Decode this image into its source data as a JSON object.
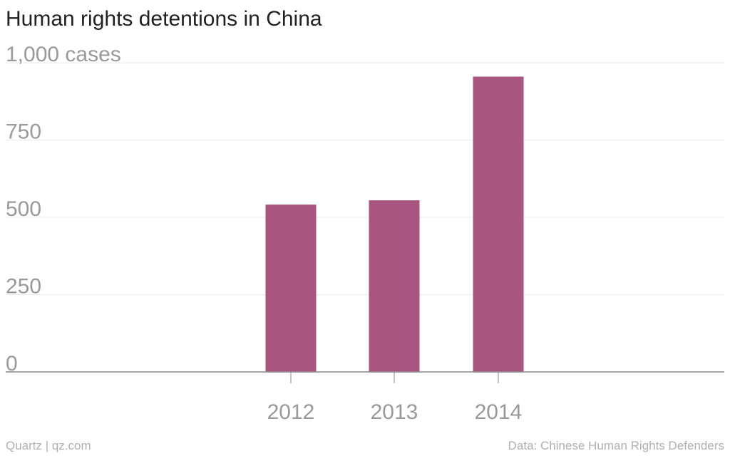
{
  "chart_data": {
    "type": "bar",
    "title": "Human rights detentions in China",
    "categories": [
      "2012",
      "2013",
      "2014"
    ],
    "series": [
      {
        "values": [
          541,
          555,
          955
        ]
      }
    ],
    "yticks": [
      0,
      250,
      500,
      750,
      1000
    ],
    "ytick_labels": [
      "0",
      "250",
      "500",
      "750",
      "1,000 cases"
    ],
    "ylim": [
      0,
      1000
    ],
    "grid": true,
    "legend": "none",
    "bar_color": "#a8567f",
    "axis_color": "#888888",
    "grid_color": "#ebebeb"
  },
  "footer": {
    "source_left": "Quartz | qz.com",
    "source_right": "Data: Chinese Human Rights Defenders"
  }
}
